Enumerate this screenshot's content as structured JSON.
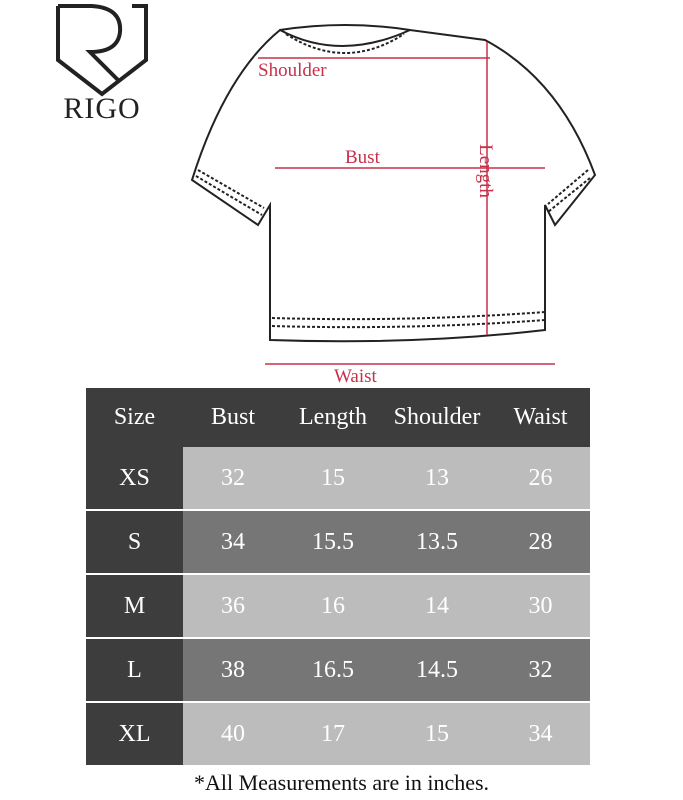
{
  "brand": {
    "name": "RIGO"
  },
  "diagram": {
    "labels": {
      "shoulder": "Shoulder",
      "bust": "Bust",
      "length": "Length",
      "waist": "Waist"
    },
    "accent_color": "#c8304a"
  },
  "table": {
    "headers": [
      "Size",
      "Bust",
      "Length",
      "Shoulder",
      "Waist"
    ],
    "rows": [
      {
        "size": "XS",
        "bust": "32",
        "length": "15",
        "shoulder": "13",
        "waist": "26"
      },
      {
        "size": "S",
        "bust": "34",
        "length": "15.5",
        "shoulder": "13.5",
        "waist": "28"
      },
      {
        "size": "M",
        "bust": "36",
        "length": "16",
        "shoulder": "14",
        "waist": "30"
      },
      {
        "size": "L",
        "bust": "38",
        "length": "16.5",
        "shoulder": "14.5",
        "waist": "32"
      },
      {
        "size": "XL",
        "bust": "40",
        "length": "17",
        "shoulder": "15",
        "waist": "34"
      }
    ],
    "colors": {
      "header": "#3d3d3d",
      "light_row": "#bdbcbd",
      "dark_row": "#767676"
    }
  },
  "note": "*All Measurements are in inches."
}
